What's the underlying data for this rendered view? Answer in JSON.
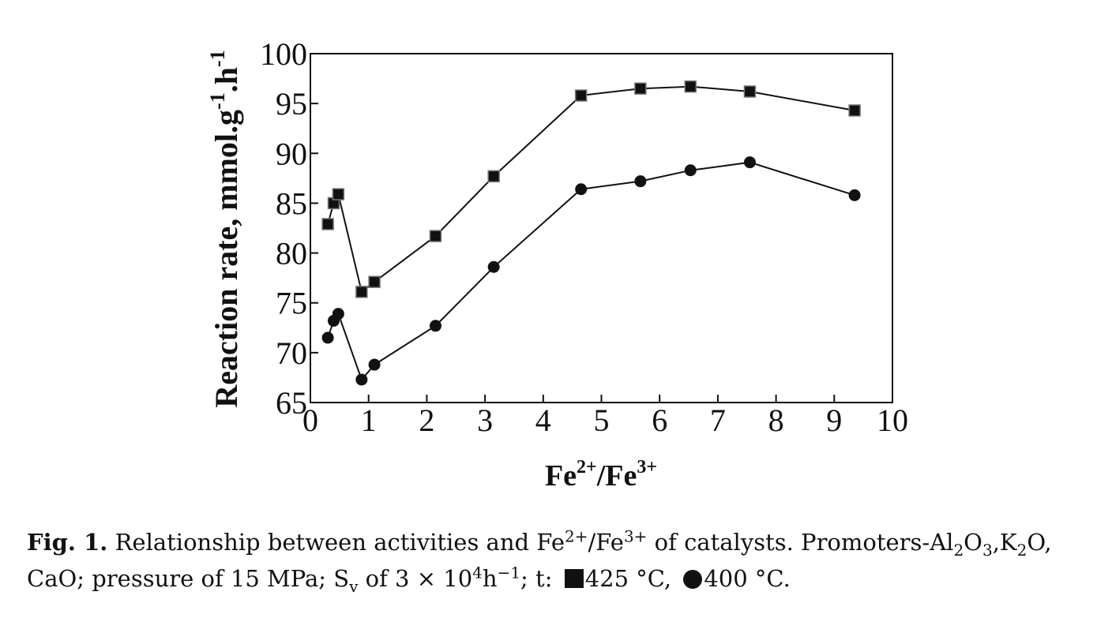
{
  "chart_data": {
    "type": "line",
    "xlabel": {
      "base": "Fe",
      "sup1": "2+",
      "mid": "/Fe",
      "sup2": "3+"
    },
    "ylabel": {
      "main": "Reaction rate, mmol.g",
      "sup1": "-1",
      "mid": ".h",
      "sup2": "-1"
    },
    "xlim": [
      0,
      10
    ],
    "ylim": [
      65,
      100
    ],
    "xticks": [
      0,
      1,
      2,
      3,
      4,
      5,
      6,
      7,
      8,
      9,
      10
    ],
    "yticks": [
      65,
      70,
      75,
      80,
      85,
      90,
      95,
      100
    ],
    "grid": false,
    "series": [
      {
        "marker": "square",
        "x": [
          0.3,
          0.4,
          0.48,
          0.88,
          1.1,
          2.15,
          3.15,
          4.65,
          5.67,
          6.53,
          7.55,
          9.35
        ],
        "y": [
          82.9,
          85.0,
          85.9,
          76.1,
          77.1,
          81.7,
          87.7,
          95.8,
          96.5,
          96.7,
          96.2,
          94.3
        ]
      },
      {
        "marker": "circle",
        "x": [
          0.3,
          0.4,
          0.48,
          0.88,
          1.1,
          2.15,
          3.15,
          4.65,
          5.67,
          6.53,
          7.55,
          9.35
        ],
        "y": [
          71.5,
          73.2,
          73.9,
          67.3,
          68.8,
          72.7,
          78.6,
          86.4,
          87.2,
          88.3,
          89.1,
          85.8
        ]
      }
    ]
  },
  "caption": {
    "fig_label": "Fig. 1.",
    "text1": " Relationship between activities and Fe",
    "sup_a": "2+",
    "text2": "/Fe",
    "sup_b": "3+",
    "text3": " of catalysts. Promoters-Al",
    "sub_a": "2",
    "text4": "O",
    "sub_b": "3",
    "text5": ",K",
    "sub_c": "2",
    "text6": "O, CaO; pressure of 15 MPa; S",
    "sub_d": "v",
    "text7": " of 3 × 10",
    "sup_c": "4",
    "text8": "h",
    "sup_d": "−1",
    "text9": "; t: ",
    "square_label": "425 °C,",
    "circle_label": "400 °C."
  }
}
